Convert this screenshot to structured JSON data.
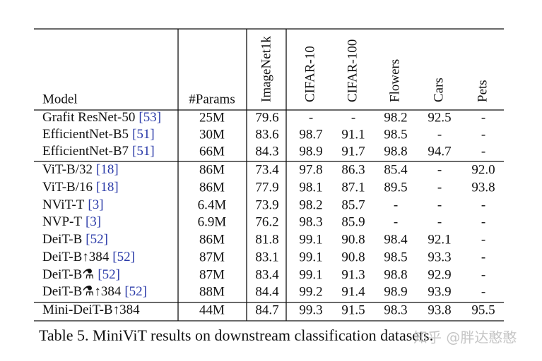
{
  "table": {
    "header": [
      "Model",
      "#Params",
      "ImageNet1k",
      "CIFAR-10",
      "CIFAR-100",
      "Flowers",
      "Cars",
      "Pets"
    ],
    "groups": [
      [
        {
          "model": "Grafit ResNet-50",
          "ref": "[53]",
          "cells": [
            "25M",
            "79.6",
            "-",
            "-",
            "98.2",
            "92.5",
            "-"
          ]
        },
        {
          "model": "EfficientNet-B5",
          "ref": "[51]",
          "cells": [
            "30M",
            "83.6",
            "98.7",
            "91.1",
            "98.5",
            "-",
            "-"
          ]
        },
        {
          "model": "EfficientNet-B7",
          "ref": "[51]",
          "cells": [
            "66M",
            "84.3",
            "98.9",
            "91.7",
            "98.8",
            "94.7",
            "-"
          ]
        }
      ],
      [
        {
          "model": "ViT-B/32",
          "ref": "[18]",
          "cells": [
            "86M",
            "73.4",
            "97.8",
            "86.3",
            "85.4",
            "-",
            "92.0"
          ]
        },
        {
          "model": "ViT-B/16",
          "ref": "[18]",
          "cells": [
            "86M",
            "77.9",
            "98.1",
            "87.1",
            "89.5",
            "-",
            "93.8"
          ]
        },
        {
          "model": "NViT-T",
          "ref": "[3]",
          "cells": [
            "6.4M",
            "73.9",
            "98.2",
            "85.7",
            "-",
            "-",
            "-"
          ]
        },
        {
          "model": "NVP-T",
          "ref": "[3]",
          "cells": [
            "6.9M",
            "76.2",
            "98.3",
            "85.9",
            "-",
            "-",
            "-"
          ]
        },
        {
          "model": "DeiT-B",
          "ref": "[52]",
          "cells": [
            "86M",
            "81.8",
            "99.1",
            "90.8",
            "98.4",
            "92.1",
            "-"
          ]
        },
        {
          "model": "DeiT-B↑384",
          "ref": "[52]",
          "cells": [
            "87M",
            "83.1",
            "99.1",
            "90.8",
            "98.5",
            "93.3",
            "-"
          ]
        },
        {
          "model": "DeiT-B⚗",
          "ref": "[52]",
          "cells": [
            "87M",
            "83.4",
            "99.1",
            "91.3",
            "98.8",
            "92.9",
            "-"
          ]
        },
        {
          "model": "DeiT-B⚗↑384",
          "ref": "[52]",
          "cells": [
            "88M",
            "84.4",
            "99.2",
            "91.4",
            "98.9",
            "93.9",
            "-"
          ]
        }
      ],
      [
        {
          "model": "Mini-DeiT-B↑384",
          "cells": [
            "44M",
            "84.7",
            "99.3",
            "91.5",
            "98.3",
            "93.8",
            "95.5"
          ]
        }
      ]
    ]
  },
  "caption": "Table 5. MiniViT results on downstream classification datasets.",
  "watermark": "知乎 @胖达憨憨"
}
